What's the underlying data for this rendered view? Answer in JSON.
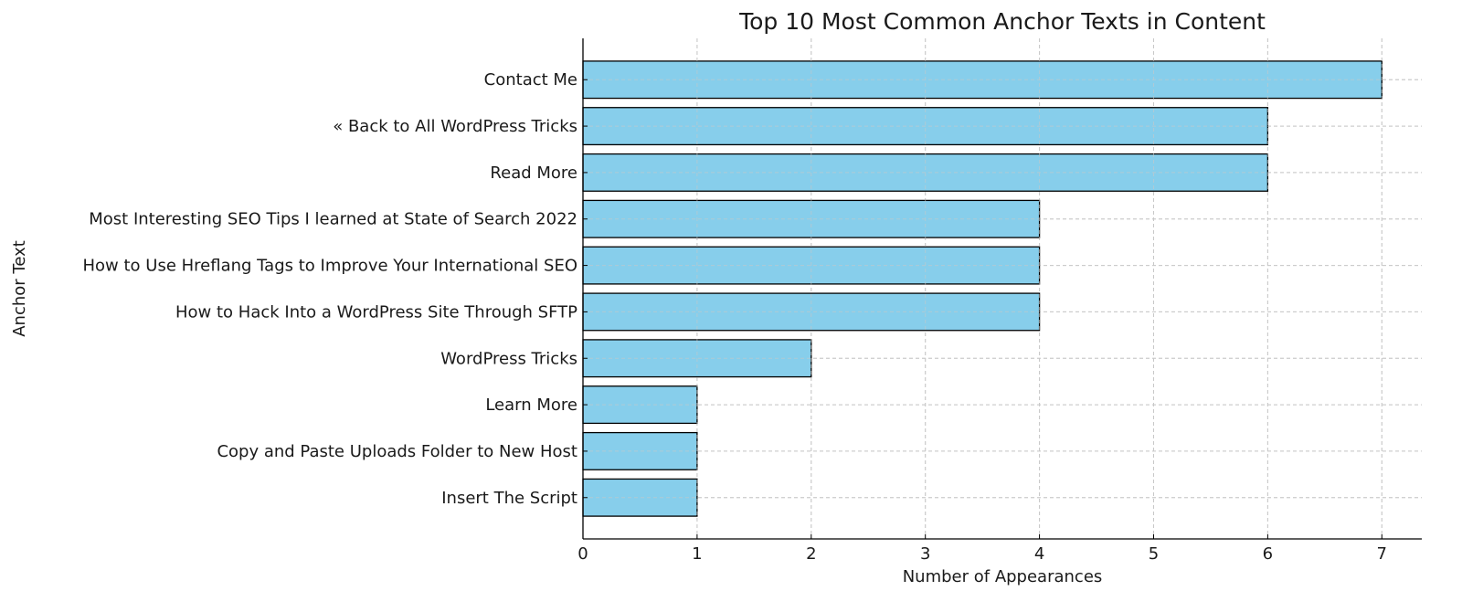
{
  "chart_data": {
    "type": "bar",
    "orientation": "horizontal",
    "title": "Top 10 Most Common Anchor Texts in Content",
    "xlabel": "Number of Appearances",
    "ylabel": "Anchor Text",
    "categories": [
      "Contact Me",
      "« Back to All WordPress Tricks",
      "Read More",
      "Most Interesting SEO Tips I learned at State of Search 2022",
      "How to Use Hreflang Tags to Improve Your International SEO",
      "How to Hack Into a WordPress Site Through SFTP",
      "WordPress Tricks",
      "Learn More",
      "Copy and Paste Uploads Folder to New Host",
      "Insert The Script"
    ],
    "values": [
      7,
      6,
      6,
      4,
      4,
      4,
      2,
      1,
      1,
      1
    ],
    "xlim": [
      0,
      7.35
    ],
    "xticks": [
      "0",
      "1",
      "2",
      "3",
      "4",
      "5",
      "6",
      "7"
    ],
    "grid": true,
    "colors": {
      "bar": "#87CEEB",
      "edge": "#000000",
      "grid": "#c8c8c8"
    }
  }
}
